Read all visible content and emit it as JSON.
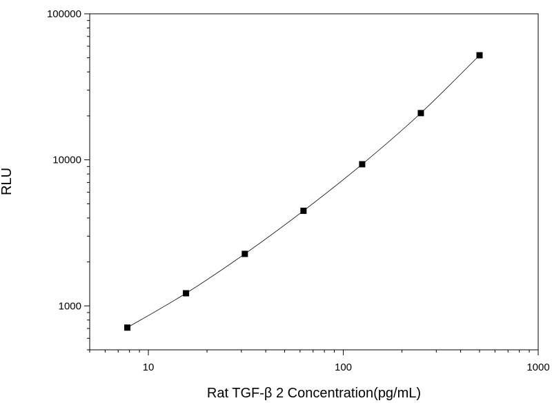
{
  "chart_data": {
    "type": "scatter",
    "xlabel": "Rat TGF-β 2 Concentration(pg/mL)",
    "ylabel": "RLU",
    "x_scale": "log",
    "y_scale": "log",
    "xlim": [
      5,
      1000
    ],
    "ylim": [
      500,
      100000
    ],
    "x_ticks": [
      10,
      100,
      1000
    ],
    "x_tick_labels": [
      "10",
      "100",
      "1000"
    ],
    "y_ticks": [
      1000,
      10000,
      100000
    ],
    "y_tick_labels": [
      "1000",
      "10000",
      "100000"
    ],
    "grid": false,
    "fit_line": true,
    "marker": "square",
    "marker_color": "#000000",
    "line_color": "#000000",
    "series": [
      {
        "x": [
          7.8,
          15.6,
          31.25,
          62.5,
          125,
          250,
          500
        ],
        "y": [
          710,
          1220,
          2270,
          4480,
          9330,
          20900,
          52000
        ]
      }
    ]
  }
}
